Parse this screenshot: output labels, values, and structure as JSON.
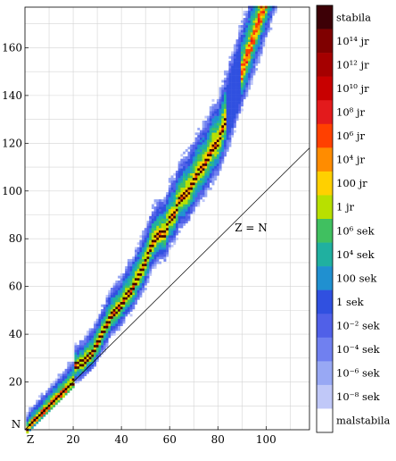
{
  "chart_data": {
    "type": "heatmap",
    "title": "",
    "x_axis": {
      "label": "Z",
      "range": [
        0,
        118
      ],
      "ticks": [
        20,
        40,
        60,
        80,
        100
      ]
    },
    "y_axis": {
      "label": "N",
      "range": [
        0,
        177
      ],
      "ticks": [
        20,
        40,
        60,
        80,
        100,
        120,
        140,
        160
      ]
    },
    "grid": true,
    "annotations": [
      {
        "text": "Z = N",
        "line": {
          "from_z": 0,
          "to_z": 118,
          "slope": 1
        }
      }
    ],
    "stable_line_points": [
      [
        1,
        0
      ],
      [
        2,
        2
      ],
      [
        4,
        4
      ],
      [
        6,
        6
      ],
      [
        8,
        8
      ],
      [
        10,
        10
      ],
      [
        12,
        12
      ],
      [
        14,
        14
      ],
      [
        16,
        16
      ],
      [
        20,
        20
      ],
      [
        20,
        26
      ],
      [
        24,
        28
      ],
      [
        26,
        30
      ],
      [
        28,
        32
      ],
      [
        30,
        36
      ],
      [
        32,
        40
      ],
      [
        34,
        44
      ],
      [
        36,
        48
      ],
      [
        38,
        50
      ],
      [
        40,
        52
      ],
      [
        42,
        56
      ],
      [
        44,
        58
      ],
      [
        46,
        62
      ],
      [
        48,
        66
      ],
      [
        50,
        70
      ],
      [
        52,
        76
      ],
      [
        54,
        80
      ],
      [
        56,
        82
      ],
      [
        58,
        82
      ],
      [
        60,
        88
      ],
      [
        62,
        90
      ],
      [
        64,
        96
      ],
      [
        66,
        98
      ],
      [
        68,
        100
      ],
      [
        70,
        104
      ],
      [
        72,
        108
      ],
      [
        74,
        110
      ],
      [
        76,
        114
      ],
      [
        78,
        118
      ],
      [
        80,
        120
      ],
      [
        82,
        126
      ]
    ],
    "colorbar": {
      "labels": [
        "stabila",
        "10¹⁴ jr",
        "10¹² jr",
        "10¹⁰ jr",
        "10⁸ jr",
        "10⁶ jr",
        "10⁴ jr",
        "100 jr",
        "1 jr",
        "10⁶ sek",
        "10⁴ sek",
        "100 sek",
        "1 sek",
        "10⁻² sek",
        "10⁻⁴ sek",
        "10⁻⁶ sek",
        "10⁻⁸ sek",
        "malstabila"
      ],
      "colors": [
        "#3d0006",
        "#7f0000",
        "#a50000",
        "#c80000",
        "#e31a1c",
        "#ff4000",
        "#ff8c00",
        "#ffd000",
        "#b8e000",
        "#40c060",
        "#20b0a0",
        "#2090d0",
        "#3050e0",
        "#5060e8",
        "#7080f0",
        "#98a8f4",
        "#c0c8f8",
        "#ffffff"
      ]
    }
  }
}
